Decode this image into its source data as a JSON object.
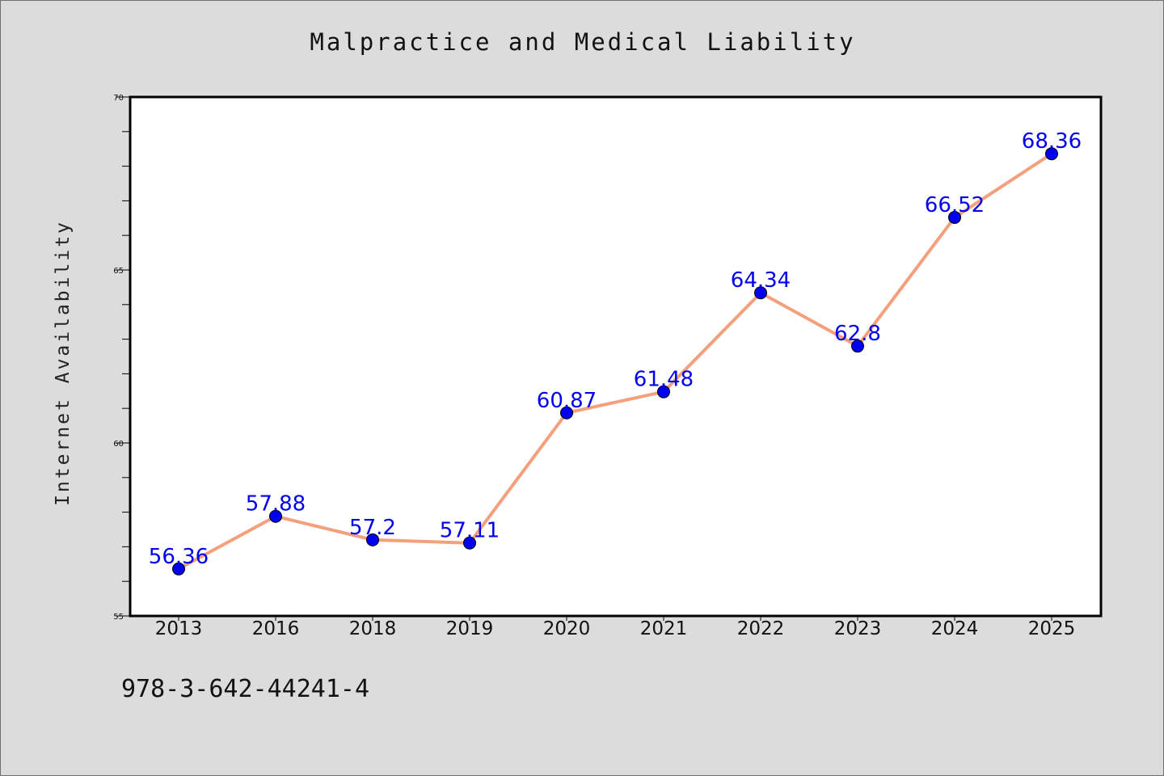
{
  "chart_data": {
    "type": "line",
    "title": "Malpractice and Medical Liability",
    "xlabel": "",
    "ylabel": "Internet Availability",
    "categories": [
      "2013",
      "2016",
      "2018",
      "2019",
      "2020",
      "2021",
      "2022",
      "2023",
      "2024",
      "2025"
    ],
    "series": [
      {
        "values": [
          56.36,
          57.88,
          57.2,
          57.11,
          60.87,
          61.48,
          64.34,
          62.8,
          66.52,
          68.36
        ],
        "data_labels": [
          "56.36",
          "57.88",
          "57.2",
          "57.11",
          "60.87",
          "61.48",
          "64.34",
          "62.8",
          "66.52",
          "68.36"
        ],
        "line_color": "#f4a07c",
        "marker_color": "#0000ee"
      }
    ],
    "ylim": [
      55,
      70
    ],
    "y_major_ticks": [
      "55",
      "60",
      "65",
      "70"
    ],
    "grid": false,
    "legend": "none"
  },
  "footer": {
    "code": "978-3-642-44241-4"
  }
}
